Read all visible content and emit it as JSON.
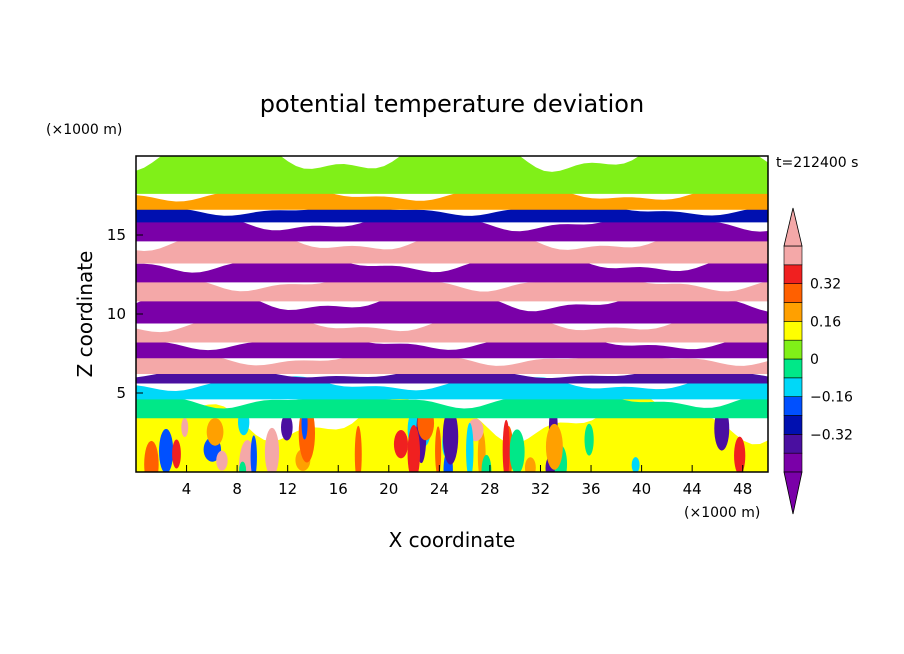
{
  "chart_data": {
    "type": "heatmap",
    "title": "potential temperature deviation",
    "xlabel": "X coordinate",
    "ylabel": "Z coordinate",
    "x_units": "(×1000 m)",
    "y_units": "(×1000 m)",
    "time_label": "t=212400 s",
    "xlim": [
      0,
      50
    ],
    "ylim": [
      0,
      20
    ],
    "x_ticks": [
      4,
      8,
      12,
      16,
      20,
      24,
      28,
      32,
      36,
      40,
      44,
      48
    ],
    "y_ticks": [
      5,
      10,
      15
    ],
    "colorbar": {
      "levels": [
        -0.48,
        -0.4,
        -0.32,
        -0.24,
        -0.16,
        -0.08,
        0,
        0.08,
        0.16,
        0.24,
        0.32,
        0.4
      ],
      "tick_labels": [
        "0.32",
        "0.16",
        "0",
        "−0.16",
        "−0.32"
      ],
      "tick_values": [
        0.32,
        0.16,
        0,
        -0.16,
        -0.32
      ],
      "colors": [
        "#7a00a8",
        "#4a0fa0",
        "#0010b0",
        "#0050ff",
        "#00d8f8",
        "#00e888",
        "#80f018",
        "#ffff00",
        "#ffa000",
        "#ff6000",
        "#f02020",
        "#f4a8a8"
      ]
    },
    "bands": [
      {
        "z": [
          0.0,
          3.4
        ],
        "level": 7,
        "pattern": "convective"
      },
      {
        "z": [
          3.4,
          4.6
        ],
        "level": 5
      },
      {
        "z": [
          4.6,
          5.6
        ],
        "level": 4
      },
      {
        "z": [
          5.6,
          6.2
        ],
        "level": 1
      },
      {
        "z": [
          6.2,
          7.2
        ],
        "level": 11
      },
      {
        "z": [
          7.2,
          8.2
        ],
        "level": 0
      },
      {
        "z": [
          8.2,
          9.4
        ],
        "level": 11
      },
      {
        "z": [
          9.4,
          10.8
        ],
        "level": 0
      },
      {
        "z": [
          10.8,
          12.0
        ],
        "level": 11
      },
      {
        "z": [
          12.0,
          13.2
        ],
        "level": 0
      },
      {
        "z": [
          13.2,
          14.6
        ],
        "level": 11
      },
      {
        "z": [
          14.6,
          15.8
        ],
        "level": 0
      },
      {
        "z": [
          15.8,
          16.6
        ],
        "level": 2
      },
      {
        "z": [
          16.6,
          17.6
        ],
        "level": 8
      },
      {
        "z": [
          17.6,
          20.0
        ],
        "level": 6
      }
    ]
  }
}
